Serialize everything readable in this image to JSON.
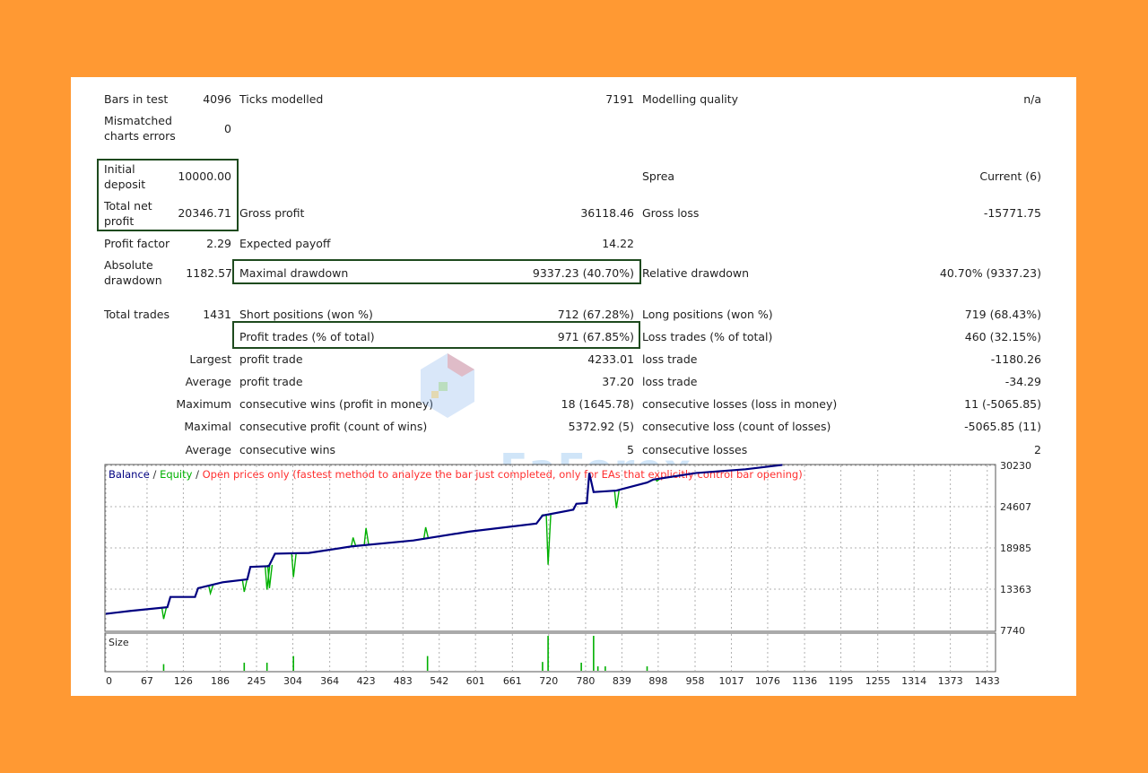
{
  "rows": {
    "bars_label": "Bars in test",
    "bars_value": "4096",
    "ticks_label": "Ticks modelled",
    "ticks_value": "7191",
    "quality_label": "Modelling quality",
    "quality_value": "n/a",
    "mismatch_label_1": "Mismatched",
    "mismatch_label_2": "charts errors",
    "mismatch_value": "0",
    "initial_label_1": "Initial",
    "initial_label_2": "deposit",
    "initial_value": "10000.00",
    "spread_label": "Sprea",
    "spread_value": "Current (6)",
    "net_label_1": "Total net",
    "net_label_2": "profit",
    "net_value": "20346.71",
    "gross_profit_label": "Gross profit",
    "gross_profit_value": "36118.46",
    "gross_loss_label": "Gross loss",
    "gross_loss_value": "-15771.75",
    "pf_label": "Profit factor",
    "pf_value": "2.29",
    "ep_label": "Expected payoff",
    "ep_value": "14.22",
    "abs_label_1": "Absolute",
    "abs_label_2": "drawdown",
    "abs_value": "1182.57",
    "maxdd_label": "Maximal drawdown",
    "maxdd_value": "9337.23 (40.70%)",
    "reldd_label": "Relative drawdown",
    "reldd_value": "40.70% (9337.23)",
    "trades_label": "Total trades",
    "trades_value": "1431",
    "short_label": "Short positions (won %)",
    "short_value": "712 (67.28%)",
    "long_label": "Long positions (won %)",
    "long_value": "719 (68.43%)",
    "pt_label": "Profit trades (% of total)",
    "pt_value": "971 (67.85%)",
    "lt_label": "Loss trades (% of total)",
    "lt_value": "460 (32.15%)",
    "largest_label": "Largest",
    "lp_label": "profit trade",
    "lp_value": "4233.01",
    "ll_label": "loss trade",
    "ll_value": "-1180.26",
    "average_label": "Average",
    "ap_label": "profit trade",
    "ap_value": "37.20",
    "al_label": "loss trade",
    "al_value": "-34.29",
    "maximum_label": "Maximum",
    "mcw_label": "consecutive wins (profit in money)",
    "mcw_value": "18 (1645.78)",
    "mcl_label": "consecutive losses (loss in money)",
    "mcl_value": "11 (-5065.85)",
    "maximal_label": "Maximal",
    "mcp_label": "consecutive profit (count of wins)",
    "mcp_value": "5372.92 (5)",
    "mcls_label": "consecutive loss (count of losses)",
    "mcls_value": "-5065.85 (11)",
    "average2_label": "Average",
    "acw_label": "consecutive wins",
    "acw_value": "5",
    "acl_label": "consecutive losses",
    "acl_value": "2"
  },
  "watermark": "EaForex",
  "chart_data": {
    "type": "line",
    "legend": {
      "balance": "Balance",
      "sep1": " / ",
      "equity": "Equity",
      "sep2": " / ",
      "mode": "Open prices only (fastest method to analyze the bar just completed, only for EAs that explicitly control bar opening)"
    },
    "colors": {
      "balance": "#000080",
      "equity": "#00b000",
      "mode": "#ff3030",
      "size": "#00b000",
      "grid": "#b0b0b0"
    },
    "x_ticks": [
      0,
      67,
      126,
      186,
      245,
      304,
      364,
      423,
      483,
      542,
      601,
      661,
      720,
      780,
      839,
      898,
      958,
      1017,
      1076,
      1136,
      1195,
      1255,
      1314,
      1373,
      1433
    ],
    "y_ticks": [
      7740,
      13363,
      18985,
      24607,
      30230
    ],
    "ylim": [
      7740,
      30230
    ],
    "xlim": [
      0,
      1445
    ],
    "series": [
      {
        "name": "Balance",
        "points": [
          [
            0,
            10000
          ],
          [
            40,
            10400
          ],
          [
            100,
            10900
          ],
          [
            105,
            12300
          ],
          [
            145,
            12300
          ],
          [
            150,
            13500
          ],
          [
            190,
            14300
          ],
          [
            230,
            14700
          ],
          [
            235,
            16400
          ],
          [
            265,
            16500
          ],
          [
            275,
            18200
          ],
          [
            330,
            18300
          ],
          [
            400,
            19200
          ],
          [
            500,
            20000
          ],
          [
            590,
            21200
          ],
          [
            700,
            22300
          ],
          [
            710,
            23400
          ],
          [
            760,
            24200
          ],
          [
            765,
            25000
          ],
          [
            782,
            25100
          ],
          [
            786,
            29200
          ],
          [
            793,
            26600
          ],
          [
            830,
            26800
          ],
          [
            880,
            27900
          ],
          [
            890,
            28300
          ],
          [
            960,
            29200
          ],
          [
            1040,
            29700
          ],
          [
            1100,
            30300
          ]
        ]
      },
      {
        "name": "Equity",
        "dips": [
          [
            94,
            9300
          ],
          [
            170,
            12800
          ],
          [
            225,
            13000
          ],
          [
            262,
            13300
          ],
          [
            266,
            13500
          ],
          [
            305,
            15000
          ],
          [
            402,
            20400
          ],
          [
            423,
            21700
          ],
          [
            520,
            21800
          ],
          [
            711,
            23500
          ],
          [
            719,
            16700
          ],
          [
            830,
            24400
          ],
          [
            896,
            28100
          ]
        ]
      }
    ],
    "size": {
      "label": "Size",
      "bars": [
        [
          94,
          0.18
        ],
        [
          225,
          0.22
        ],
        [
          262,
          0.22
        ],
        [
          305,
          0.4
        ],
        [
          523,
          0.4
        ],
        [
          710,
          0.24
        ],
        [
          719,
          0.95
        ],
        [
          773,
          0.22
        ],
        [
          793,
          0.95
        ],
        [
          800,
          0.12
        ],
        [
          812,
          0.12
        ],
        [
          880,
          0.12
        ]
      ]
    }
  }
}
